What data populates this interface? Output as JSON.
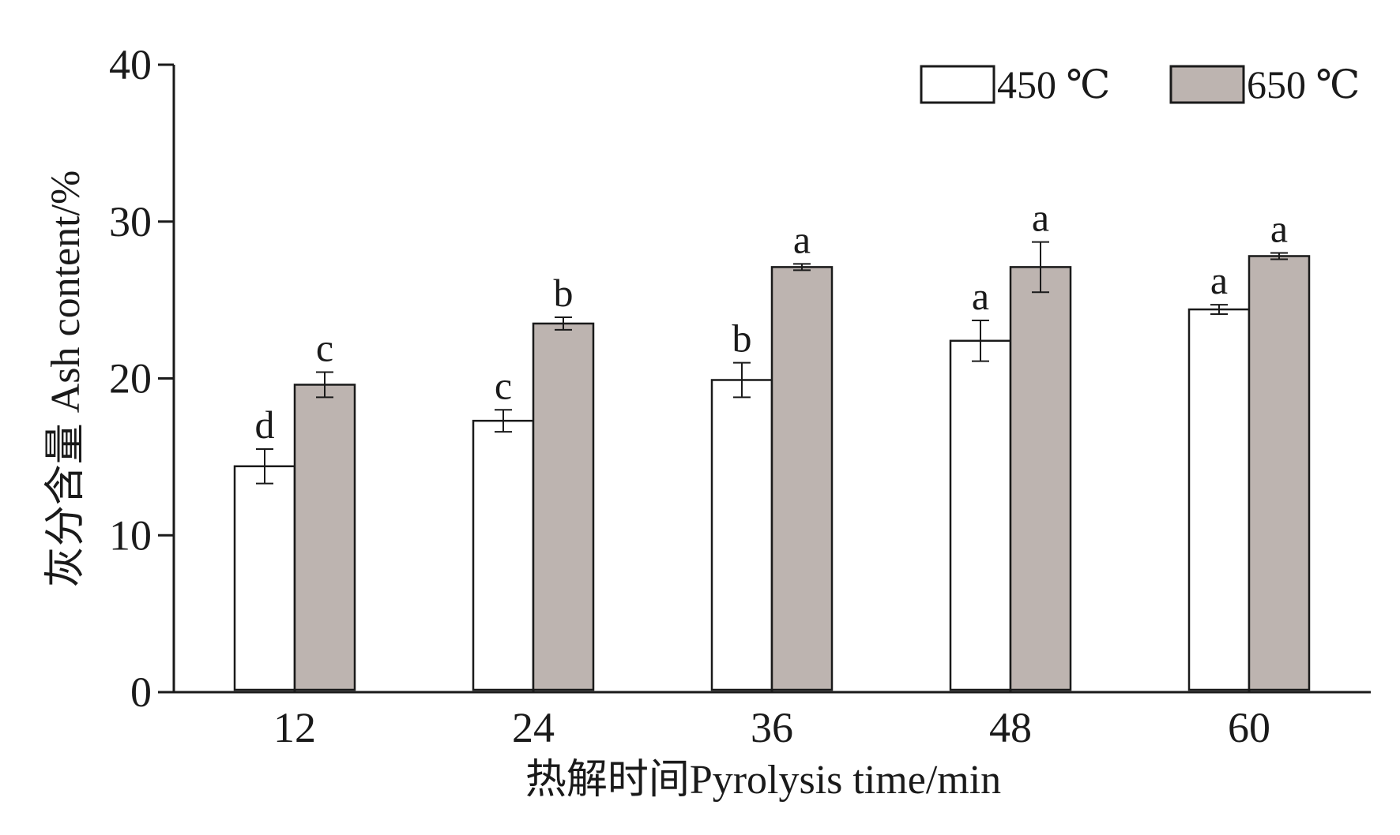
{
  "chart_data": {
    "type": "bar",
    "xlabel": "热解时间Pyrolysis time/min",
    "ylabel": "灰分含量 Ash content/%",
    "categories": [
      "12",
      "24",
      "36",
      "48",
      "60"
    ],
    "ylim": [
      0,
      40
    ],
    "yticks": [
      0,
      10,
      20,
      30,
      40
    ],
    "legend_position": "top-right",
    "series": [
      {
        "name": "450 ℃",
        "color": "#ffffff",
        "values": [
          14.4,
          17.3,
          19.9,
          22.4,
          24.4
        ],
        "errors": [
          1.1,
          0.7,
          1.1,
          1.3,
          0.3
        ],
        "labels": [
          "d",
          "c",
          "b",
          "a",
          "a"
        ]
      },
      {
        "name": "650 ℃",
        "color": "#bdb4b0",
        "values": [
          19.6,
          23.5,
          27.1,
          27.1,
          27.8
        ],
        "errors": [
          0.8,
          0.4,
          0.2,
          1.6,
          0.2
        ],
        "labels": [
          "c",
          "b",
          "a",
          "a",
          "a"
        ]
      }
    ]
  }
}
